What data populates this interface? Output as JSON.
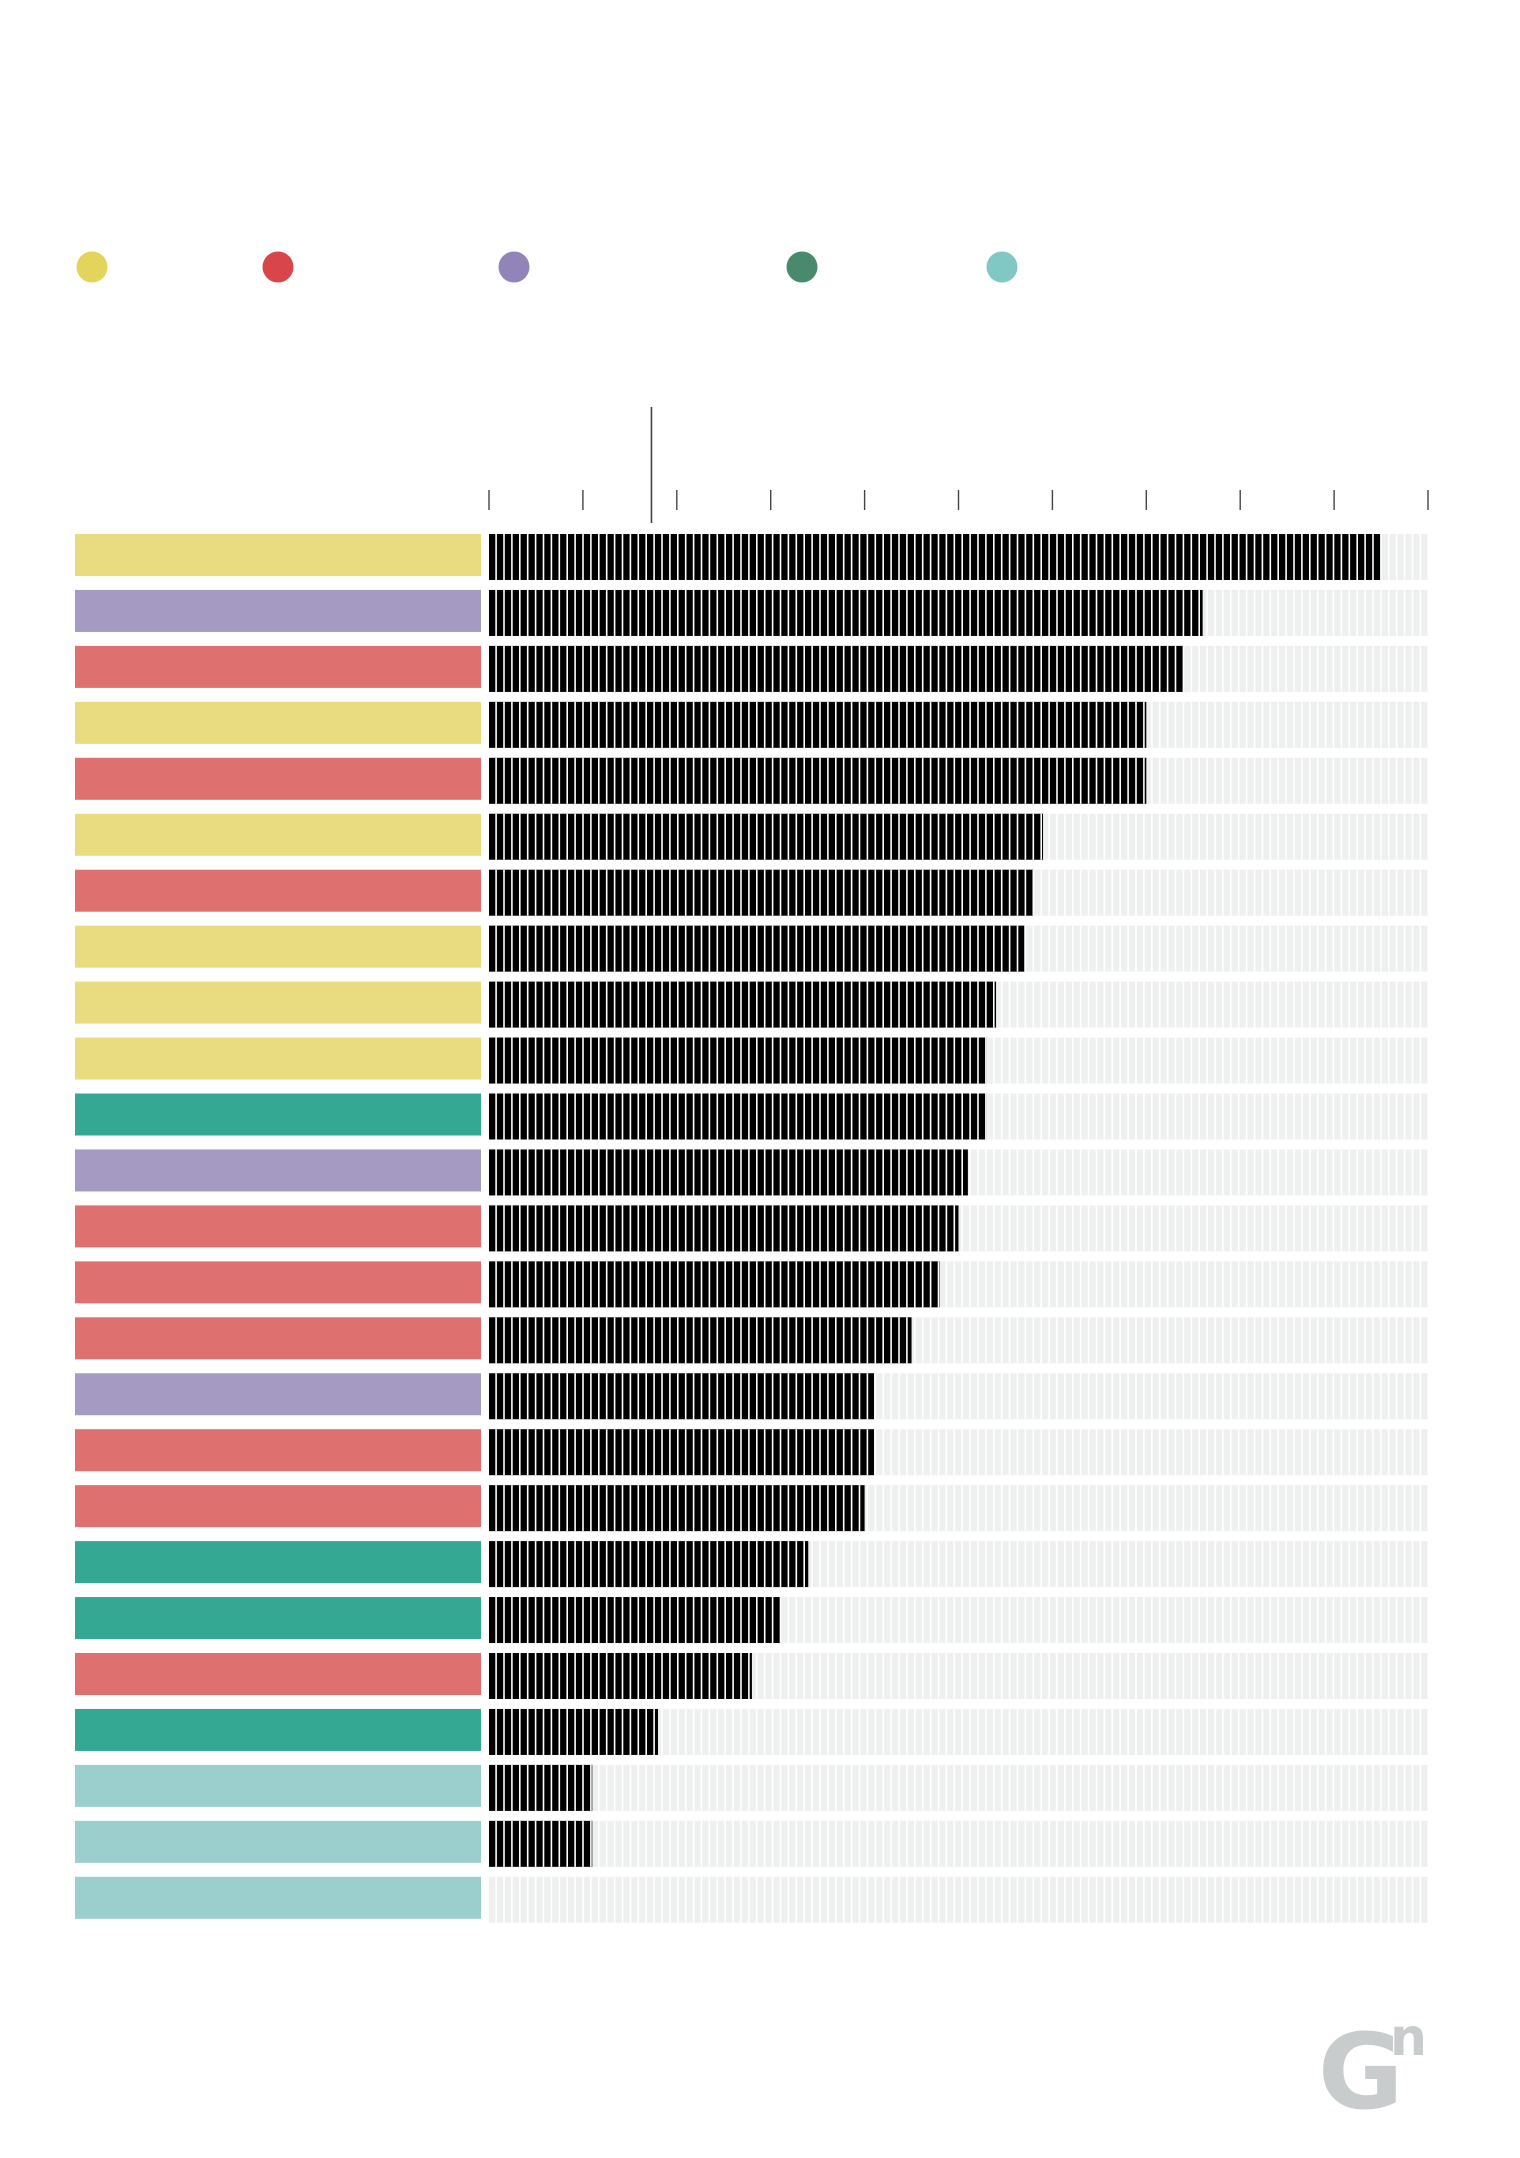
{
  "palette": {
    "bar_fill": "#000000",
    "bar_track": "#eef0ef",
    "axis": "#444444"
  },
  "legend": [
    {
      "color": "#e3d45c"
    },
    {
      "color": "#d9464a"
    },
    {
      "color": "#9283b8"
    },
    {
      "color": "#4a8a6c"
    },
    {
      "color": "#7fc8c4"
    }
  ],
  "chart_data": {
    "type": "bar",
    "orientation": "horizontal",
    "xlim": [
      0,
      100
    ],
    "x_ticks": [
      0,
      10,
      20,
      30,
      40,
      50,
      60,
      70,
      80,
      90,
      100
    ],
    "reference_line": 17.3,
    "bars": [
      {
        "group_color": "#e9dc80",
        "value": 95
      },
      {
        "group_color": "#a59bc2",
        "value": 76
      },
      {
        "group_color": "#df7070",
        "value": 74
      },
      {
        "group_color": "#e9dc80",
        "value": 70
      },
      {
        "group_color": "#df7070",
        "value": 70
      },
      {
        "group_color": "#e9dc80",
        "value": 59
      },
      {
        "group_color": "#df7070",
        "value": 58
      },
      {
        "group_color": "#e9dc80",
        "value": 57
      },
      {
        "group_color": "#e9dc80",
        "value": 54
      },
      {
        "group_color": "#e9dc80",
        "value": 53
      },
      {
        "group_color": "#35a893",
        "value": 53
      },
      {
        "group_color": "#a59bc2",
        "value": 51
      },
      {
        "group_color": "#df7070",
        "value": 50
      },
      {
        "group_color": "#df7070",
        "value": 48
      },
      {
        "group_color": "#df7070",
        "value": 45
      },
      {
        "group_color": "#a59bc2",
        "value": 41
      },
      {
        "group_color": "#df7070",
        "value": 41
      },
      {
        "group_color": "#df7070",
        "value": 40
      },
      {
        "group_color": "#35a893",
        "value": 34
      },
      {
        "group_color": "#35a893",
        "value": 31
      },
      {
        "group_color": "#df7070",
        "value": 28
      },
      {
        "group_color": "#35a893",
        "value": 18
      },
      {
        "group_color": "#9acfcd",
        "value": 11
      },
      {
        "group_color": "#9acfcd",
        "value": 11
      },
      {
        "group_color": "#9acfcd",
        "value": 0
      }
    ]
  }
}
